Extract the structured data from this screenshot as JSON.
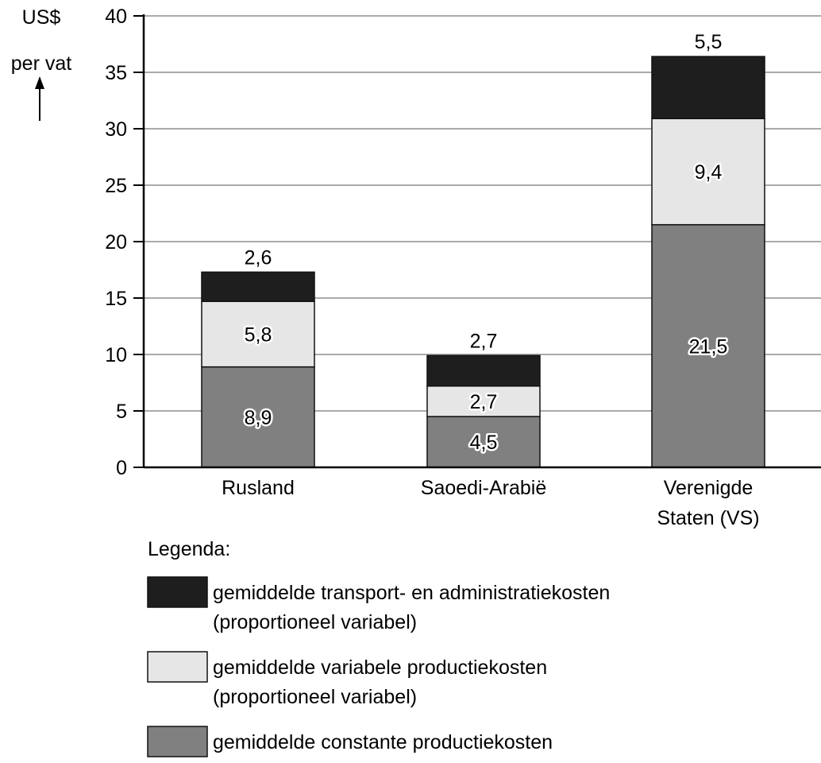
{
  "chart_data": {
    "type": "bar",
    "stacked": true,
    "ylabel_lines": [
      "US$",
      "per vat"
    ],
    "ylim": [
      0,
      40
    ],
    "yticks": [
      0,
      5,
      10,
      15,
      20,
      25,
      30,
      35,
      40
    ],
    "grid": true,
    "categories": [
      [
        "Rusland"
      ],
      [
        "Saoedi-Arabië"
      ],
      [
        "Verenigde",
        "Staten (VS)"
      ]
    ],
    "series": [
      {
        "name": "gemiddelde constante productiekosten",
        "values": [
          8.9,
          4.5,
          21.5
        ],
        "labels": [
          "8,9",
          "4,5",
          "21,5"
        ],
        "color": "#808080"
      },
      {
        "name": "gemiddelde variabele productiekosten (proportioneel variabel)",
        "values": [
          5.8,
          2.7,
          9.4
        ],
        "labels": [
          "5,8",
          "2,7",
          "9,4"
        ],
        "color": "#e6e6e6"
      },
      {
        "name": "gemiddelde transport- en administratiekosten (proportioneel variabel)",
        "values": [
          2.6,
          2.7,
          5.5
        ],
        "labels": [
          "2,6",
          "2,7",
          "5,5"
        ],
        "color": "#1e1e1e"
      }
    ],
    "legend": {
      "title": "Legenda:",
      "placement": "bottom",
      "entries": [
        {
          "color": "#1e1e1e",
          "lines": [
            "gemiddelde transport- en administratiekosten",
            "(proportioneel variabel)"
          ]
        },
        {
          "color": "#e6e6e6",
          "lines": [
            "gemiddelde variabele productiekosten",
            "(proportioneel variabel)"
          ]
        },
        {
          "color": "#808080",
          "lines": [
            "gemiddelde constante productiekosten"
          ]
        }
      ]
    }
  }
}
